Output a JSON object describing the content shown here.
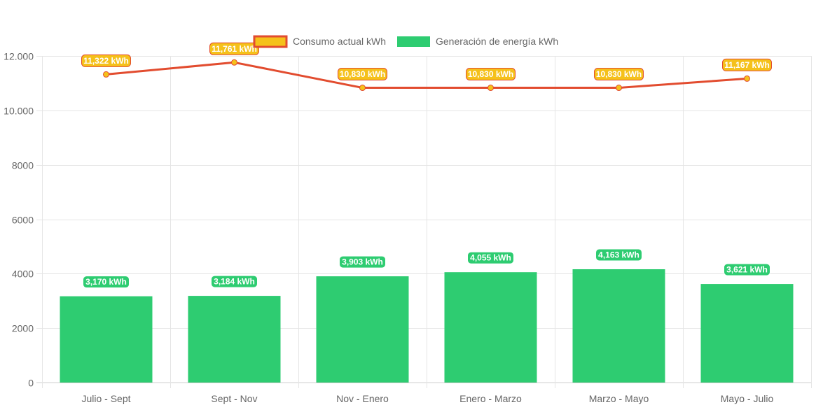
{
  "chart_data": {
    "type": "bar",
    "categories": [
      "Julio - Sept",
      "Sept - Nov",
      "Nov - Enero",
      "Enero - Marzo",
      "Marzo - Mayo",
      "Mayo - Julio"
    ],
    "series": [
      {
        "name": "Consumo actual kWh",
        "type": "line",
        "values": [
          11322,
          11761,
          10830,
          10830,
          10830,
          11167
        ],
        "labels": [
          "11,322 kWh",
          "11,761 kWh",
          "10,830 kWh",
          "10,830 kWh",
          "10,830 kWh",
          "11,167 kWh"
        ],
        "color": "#e24c2f",
        "point_color": "#f5c11a"
      },
      {
        "name": "Generación de energía kWh",
        "type": "bar",
        "values": [
          3170,
          3184,
          3903,
          4055,
          4163,
          3621
        ],
        "labels": [
          "3,170 kWh",
          "3,184 kWh",
          "3,903 kWh",
          "4,055 kWh",
          "4,163 kWh",
          "3,621 kWh"
        ],
        "color": "#2ecc71"
      }
    ],
    "ylim": [
      0,
      12000
    ],
    "yticks": [
      0,
      2000,
      4000,
      6000,
      8000,
      10000,
      12000
    ],
    "ytick_labels": [
      "0",
      "2000",
      "4000",
      "6000",
      "8000",
      "10.000",
      "12.000"
    ],
    "grid": true,
    "legend_position": "top-center"
  }
}
